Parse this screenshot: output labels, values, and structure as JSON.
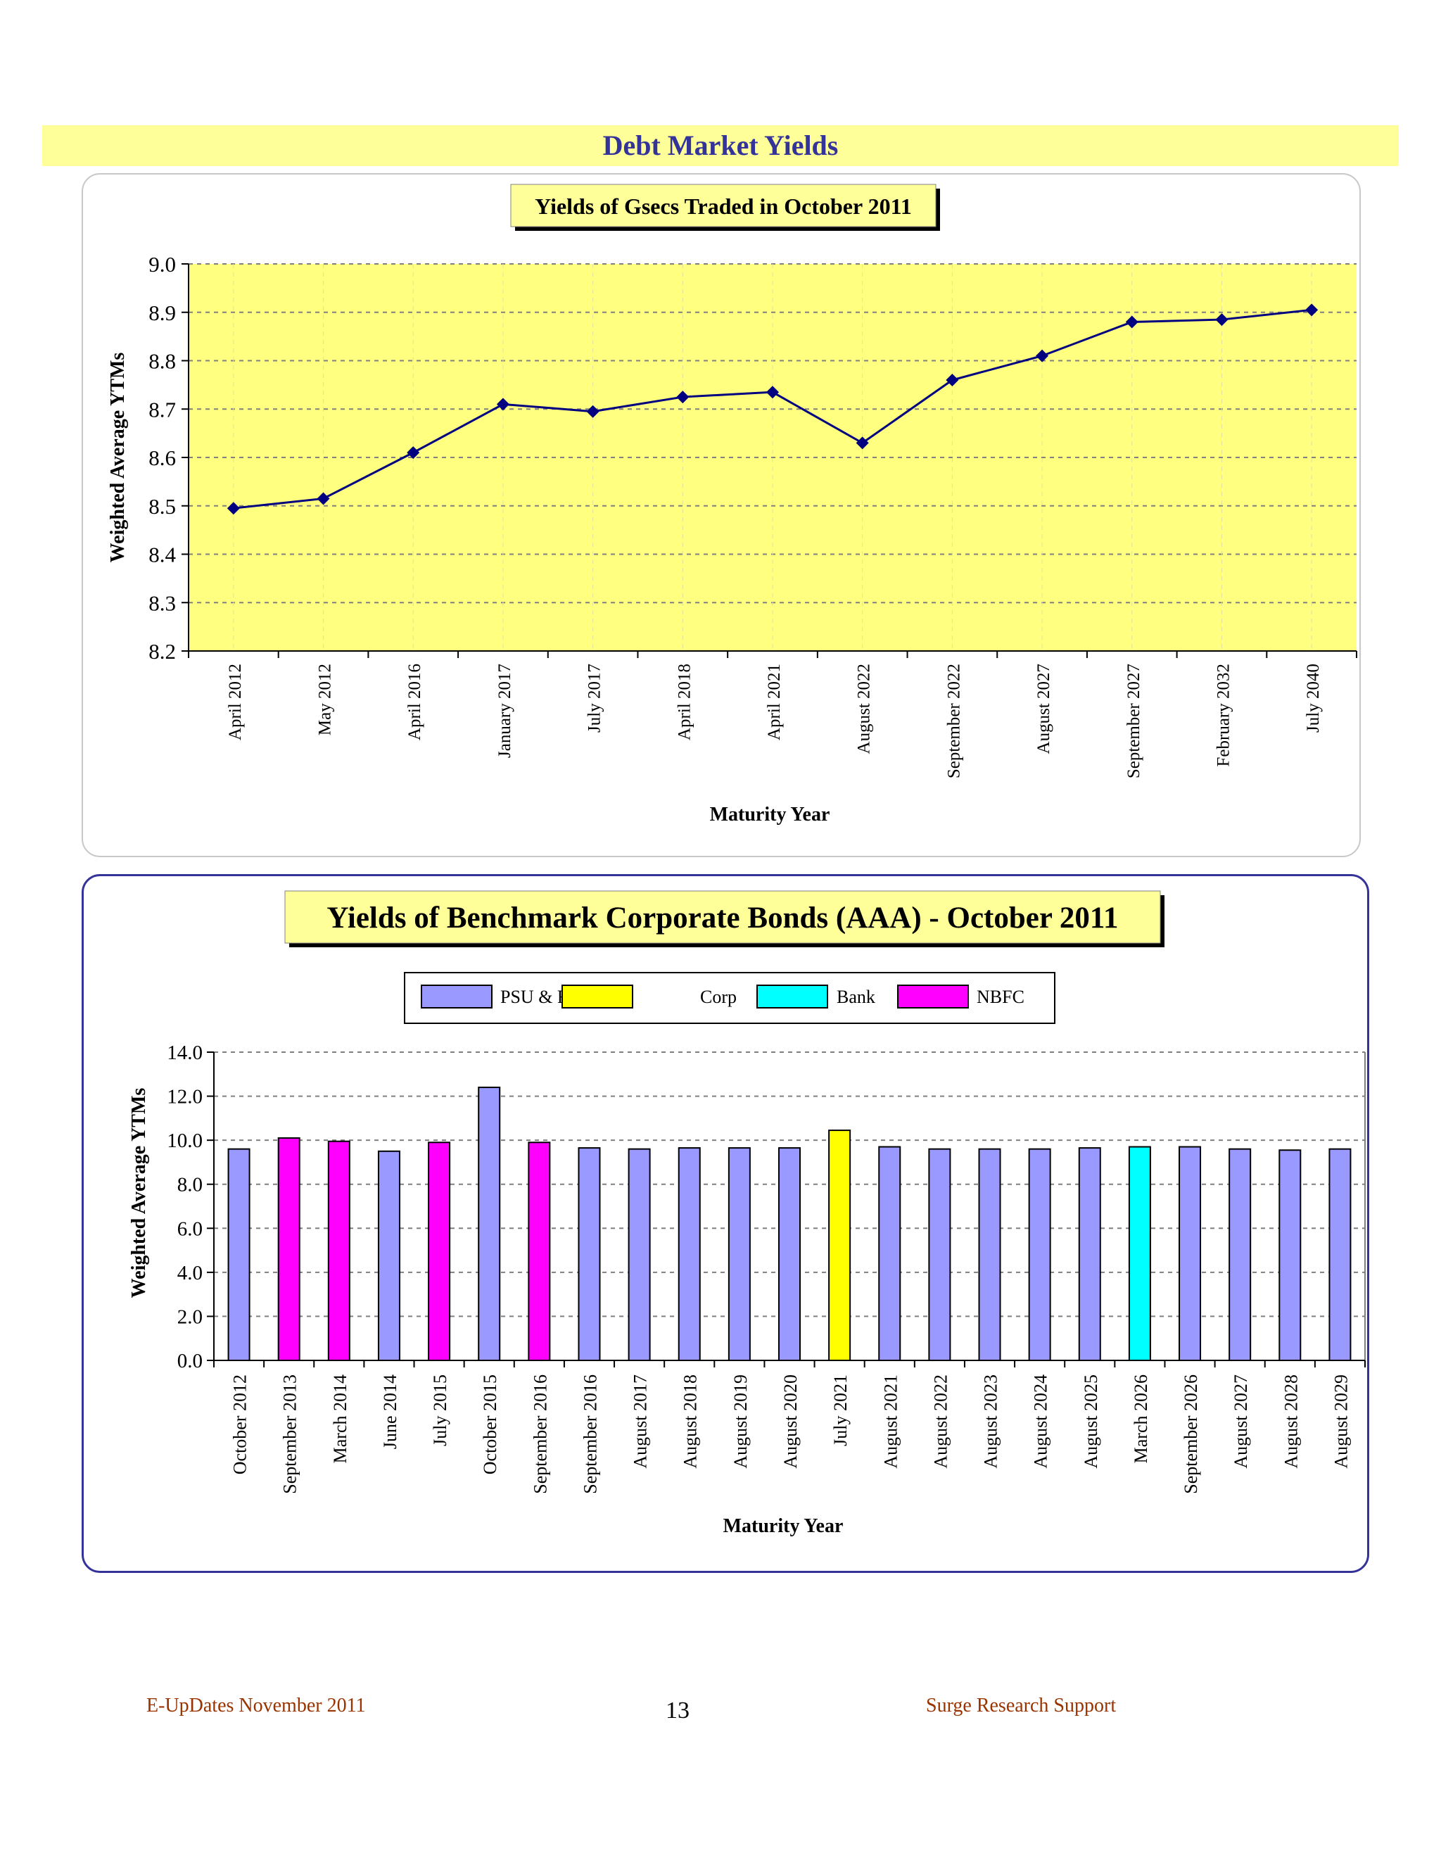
{
  "header": {
    "title": "Debt Market Yields"
  },
  "footer": {
    "left": "E-UpDates November 2011",
    "page": "13",
    "right": "Surge Research Support"
  },
  "colors": {
    "band": "#ffff99",
    "plot1_bg": "#ffff80",
    "line": "#000080",
    "psu": "#9999ff",
    "corp": "#ffff00",
    "bank": "#00ffff",
    "nbfc": "#ff00ff"
  },
  "chart_data": [
    {
      "type": "line",
      "title": "Yields of Gsecs Traded in October 2011",
      "xlabel": "Maturity Year",
      "ylabel": "Weighted Average YTMs",
      "ylim": [
        8.2,
        9.0
      ],
      "yticks": [
        "8.2",
        "8.3",
        "8.4",
        "8.5",
        "8.6",
        "8.7",
        "8.8",
        "8.9",
        "9.0"
      ],
      "grid": true,
      "categories": [
        "April 2012",
        "May 2012",
        "April 2016",
        "January 2017",
        "July 2017",
        "April 2018",
        "April 2021",
        "August 2022",
        "September 2022",
        "August 2027",
        "September 2027",
        "February 2032",
        "July 2040"
      ],
      "values": [
        8.495,
        8.515,
        8.61,
        8.71,
        8.695,
        8.725,
        8.735,
        8.63,
        8.76,
        8.81,
        8.88,
        8.885,
        8.905
      ]
    },
    {
      "type": "bar",
      "title": "Yields of Benchmark Corporate Bonds (AAA) - October 2011",
      "xlabel": "Maturity Year",
      "ylabel": "Weighted Average YTMs",
      "ylim": [
        0,
        14
      ],
      "yticks": [
        "0.0",
        "2.0",
        "4.0",
        "6.0",
        "8.0",
        "10.0",
        "12.0",
        "14.0"
      ],
      "grid": true,
      "legend_position": "top",
      "legend": [
        {
          "name": "PSU & FI's",
          "color": "#9999ff"
        },
        {
          "name": "Corp",
          "color": "#ffff00"
        },
        {
          "name": "Bank",
          "color": "#00ffff"
        },
        {
          "name": "NBFC",
          "color": "#ff00ff"
        }
      ],
      "categories": [
        "October 2012",
        "September 2013",
        "March 2014",
        "June 2014",
        "July 2015",
        "October 2015",
        "September 2016",
        "September 2016",
        "August 2017",
        "August 2018",
        "August 2019",
        "August 2020",
        "July 2021",
        "August 2021",
        "August 2022",
        "August 2023",
        "August 2024",
        "August 2025",
        "March 2026",
        "September 2026",
        "August 2027",
        "August 2028",
        "August 2029"
      ],
      "values": [
        9.6,
        10.1,
        9.95,
        9.5,
        9.9,
        12.4,
        9.9,
        9.65,
        9.6,
        9.65,
        9.65,
        9.65,
        10.45,
        9.7,
        9.6,
        9.6,
        9.6,
        9.65,
        9.7,
        9.7,
        9.6,
        9.55,
        9.6
      ],
      "groups": [
        "PSU & FI's",
        "NBFC",
        "NBFC",
        "PSU & FI's",
        "NBFC",
        "PSU & FI's",
        "NBFC",
        "PSU & FI's",
        "PSU & FI's",
        "PSU & FI's",
        "PSU & FI's",
        "PSU & FI's",
        "Corp",
        "PSU & FI's",
        "PSU & FI's",
        "PSU & FI's",
        "PSU & FI's",
        "PSU & FI's",
        "Bank",
        "PSU & FI's",
        "PSU & FI's",
        "PSU & FI's",
        "PSU & FI's"
      ]
    }
  ]
}
